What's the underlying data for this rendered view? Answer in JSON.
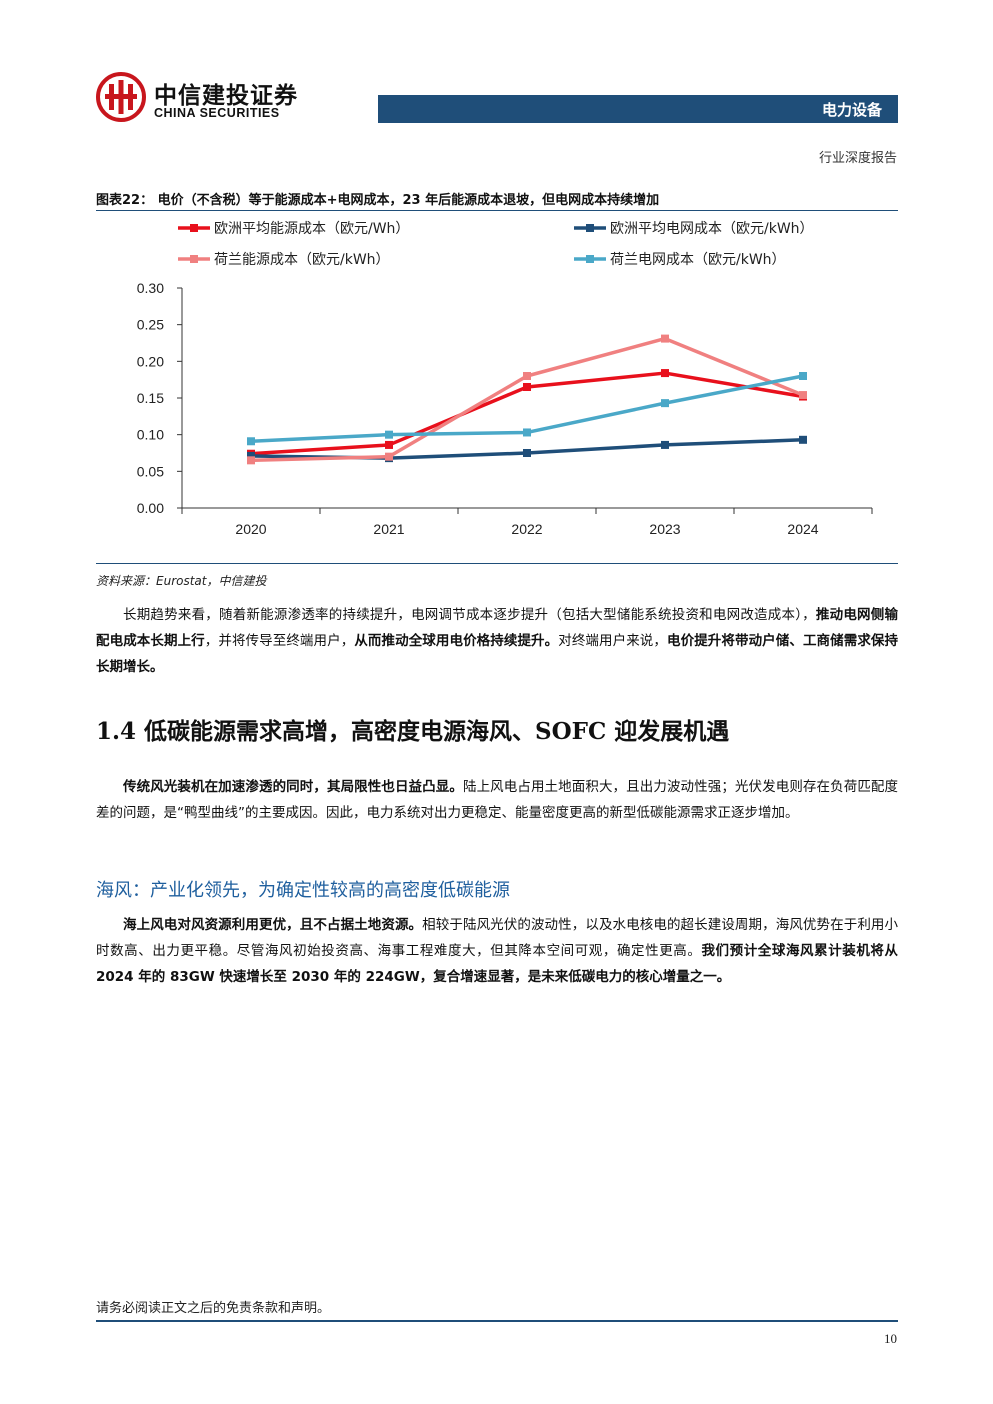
{
  "header": {
    "brand_cn": "中信建投证券",
    "brand_en": "CHINA SECURITIES",
    "sector": "电力设备",
    "report_type": "行业深度报告",
    "bar_color": "#1f4e79"
  },
  "figure": {
    "title": "图表22：  电价（不含税）等于能源成本+电网成本，23 年后能源成本退坡，但电网成本持续增加",
    "source": "资料来源：Eurostat，中信建投"
  },
  "chart_data": {
    "type": "line",
    "x": [
      "2020",
      "2021",
      "2022",
      "2023",
      "2024"
    ],
    "ylim": [
      0,
      0.3
    ],
    "yticks": [
      "0.00",
      "0.05",
      "0.10",
      "0.15",
      "0.20",
      "0.25",
      "0.30"
    ],
    "grid": false,
    "legend_position": "top",
    "series": [
      {
        "name": "欧洲平均能源成本（欧元/Wh）",
        "color": "#e8101c",
        "values": [
          0.074,
          0.086,
          0.165,
          0.184,
          0.152
        ]
      },
      {
        "name": "欧洲平均电网成本（欧元/kWh）",
        "color": "#1f4e79",
        "values": [
          0.071,
          0.068,
          0.075,
          0.086,
          0.093
        ]
      },
      {
        "name": "荷兰能源成本（欧元/kWh）",
        "color": "#f08080",
        "values": [
          0.065,
          0.07,
          0.18,
          0.231,
          0.154
        ]
      },
      {
        "name": "荷兰电网成本（欧元/kWh）",
        "color": "#4aa8c8",
        "values": [
          0.091,
          0.1,
          0.103,
          0.143,
          0.18
        ]
      }
    ]
  },
  "paragraph1": {
    "t1": "长期趋势来看，随着新能源渗透率的持续提升，电网调节成本逐步提升（包括大型储能系统投资和电网改造成本），",
    "b1": "推动电网侧输配电成本长期上行",
    "t2": "，并将传导至终端用户，",
    "b2": "从而推动全球用电价格持续提升。",
    "t3": "对终端用户来说，",
    "b3": "电价提升将带动户储、工商储需求保持长期增长。"
  },
  "section": {
    "heading": "1.4  低碳能源需求高增，高密度电源海风、SOFC 迎发展机遇"
  },
  "paragraph2": {
    "b1": "传统风光装机在加速渗透的同时，其局限性也日益凸显。",
    "t1": "陆上风电占用土地面积大，且出力波动性强；光伏发电则存在负荷匹配度差的问题，是“鸭型曲线”的主要成因。因此，电力系统对出力更稳定、能量密度更高的新型低碳能源需求正逐步增加。"
  },
  "subsection": {
    "heading": "海风：产业化领先，为确定性较高的高密度低碳能源"
  },
  "paragraph3": {
    "b1": "海上风电对风资源利用更优，且不占据土地资源。",
    "t1": "相较于陆风光伏的波动性，以及水电核电的超长建设周期，海风优势在于利用小时数高、出力更平稳。尽管海风初始投资高、海事工程难度大，但其降本空间可观，确定性更高。",
    "b2": "我们预计全球海风累计装机将从 2024 年的 83GW 快速增长至 2030 年的 224GW，复合增速显著，是未来低碳电力的核心增量之一。"
  },
  "footer": {
    "note": "请务必阅读正文之后的免责条款和声明。",
    "page": "10"
  }
}
